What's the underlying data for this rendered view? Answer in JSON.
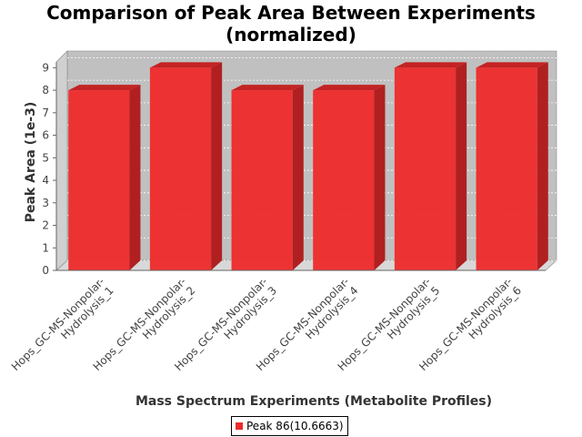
{
  "chart_data": {
    "type": "bar",
    "title_line1": "Comparison of Peak Area Between Experiments",
    "title_line2": "(normalized)",
    "xlabel": "Mass Spectrum Experiments (Metabolite Profiles)",
    "ylabel": "Peak Area (1e-3)",
    "categories": [
      [
        "Hops_GC-MS-Nonpolar-",
        "Hydrolysis_1"
      ],
      [
        "Hops_GC-MS-Nonpolar-",
        "Hydrolysis_2"
      ],
      [
        "Hops_GC-MS-Nonpolar-",
        "Hydrolysis_3"
      ],
      [
        "Hops_GC-MS-Nonpolar-",
        "Hydrolysis_4"
      ],
      [
        "Hops_GC-MS-Nonpolar-",
        "Hydrolysis_5"
      ],
      [
        "Hops_GC-MS-Nonpolar-",
        "Hydrolysis_6"
      ]
    ],
    "series": [
      {
        "name": "Peak 86(10.6663)",
        "values": [
          8,
          9,
          8,
          8,
          9,
          9
        ],
        "color": "#ee2a2a"
      }
    ],
    "ylim": [
      0,
      9.5
    ],
    "yticks": [
      0,
      1,
      2,
      3,
      4,
      5,
      6,
      7,
      8,
      9
    ],
    "grid": true,
    "legend_position": "bottom-center"
  },
  "colors": {
    "bar_front": "#ee2a2a",
    "bar_top": "#c42323",
    "bar_side": "#b02020",
    "plot_background": "#c0c0c0",
    "plot_floor": "#d8d8d8"
  }
}
